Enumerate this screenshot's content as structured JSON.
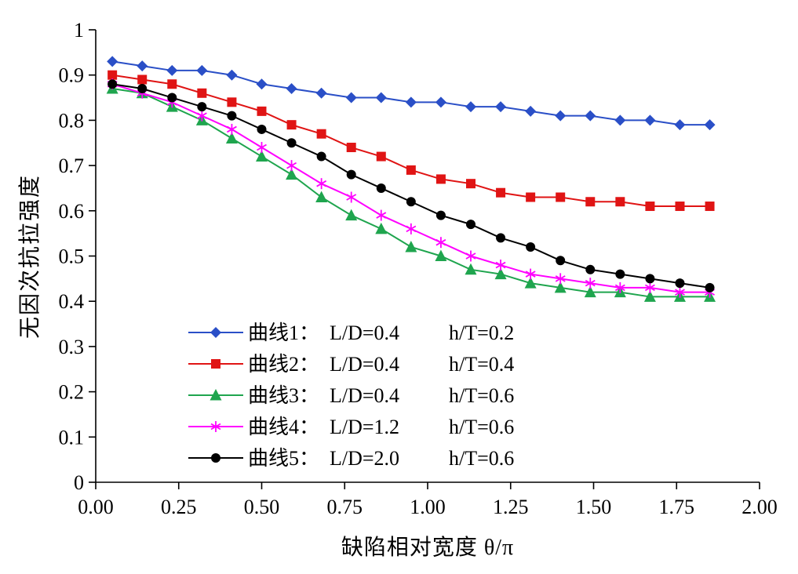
{
  "chart_data": {
    "type": "line",
    "title": "",
    "xlabel": "缺陷相对宽度 θ/π",
    "ylabel": "无因次抗拉强度",
    "xlim": [
      0,
      2
    ],
    "ylim": [
      0,
      1
    ],
    "grid": false,
    "legend_position": "inside-lower-left",
    "xticks": {
      "values": [
        0,
        0.25,
        0.5,
        0.75,
        1.0,
        1.25,
        1.5,
        1.75,
        2.0
      ],
      "labels": [
        "0.00",
        "0.25",
        "0.50",
        "0.75",
        "1.00",
        "1.25",
        "1.50",
        "1.75",
        "2.00"
      ]
    },
    "yticks": {
      "values": [
        0,
        0.1,
        0.2,
        0.3,
        0.4,
        0.5,
        0.6,
        0.7,
        0.8,
        0.9,
        1.0
      ],
      "labels": [
        "0",
        "0.1",
        "0.2",
        "0.3",
        "0.4",
        "0.5",
        "0.6",
        "0.7",
        "0.8",
        "0.9",
        "1"
      ]
    },
    "x": [
      0.05,
      0.14,
      0.23,
      0.32,
      0.41,
      0.5,
      0.59,
      0.68,
      0.77,
      0.86,
      0.95,
      1.04,
      1.13,
      1.22,
      1.31,
      1.4,
      1.49,
      1.58,
      1.67,
      1.76,
      1.85
    ],
    "series": [
      {
        "name": "曲线1",
        "legend": {
          "name": "曲线1：",
          "ld": "L/D=0.4",
          "ht": "h/T=0.2"
        },
        "color": "#2a4fc7",
        "marker": "diamond",
        "values": [
          0.93,
          0.92,
          0.91,
          0.91,
          0.9,
          0.88,
          0.87,
          0.86,
          0.85,
          0.85,
          0.84,
          0.84,
          0.83,
          0.83,
          0.82,
          0.81,
          0.81,
          0.8,
          0.8,
          0.79,
          0.79
        ]
      },
      {
        "name": "曲线2",
        "legend": {
          "name": "曲线2：",
          "ld": "L/D=0.4",
          "ht": "h/T=0.4"
        },
        "color": "#e01414",
        "marker": "square",
        "values": [
          0.9,
          0.89,
          0.88,
          0.86,
          0.84,
          0.82,
          0.79,
          0.77,
          0.74,
          0.72,
          0.69,
          0.67,
          0.66,
          0.64,
          0.63,
          0.63,
          0.62,
          0.62,
          0.61,
          0.61,
          0.61
        ]
      },
      {
        "name": "曲线3",
        "legend": {
          "name": "曲线3：",
          "ld": "L/D=0.4",
          "ht": "h/T=0.6"
        },
        "color": "#1fa54e",
        "marker": "triangle",
        "values": [
          0.87,
          0.86,
          0.83,
          0.8,
          0.76,
          0.72,
          0.68,
          0.63,
          0.59,
          0.56,
          0.52,
          0.5,
          0.47,
          0.46,
          0.44,
          0.43,
          0.42,
          0.42,
          0.41,
          0.41,
          0.41
        ]
      },
      {
        "name": "曲线4",
        "legend": {
          "name": "曲线4：",
          "ld": "L/D=1.2",
          "ht": "h/T=0.6"
        },
        "color": "#ff00ff",
        "marker": "asterisk",
        "values": [
          0.88,
          0.86,
          0.84,
          0.81,
          0.78,
          0.74,
          0.7,
          0.66,
          0.63,
          0.59,
          0.56,
          0.53,
          0.5,
          0.48,
          0.46,
          0.45,
          0.44,
          0.43,
          0.43,
          0.42,
          0.42
        ]
      },
      {
        "name": "曲线5",
        "legend": {
          "name": "曲线5：",
          "ld": "L/D=2.0",
          "ht": "h/T=0.6"
        },
        "color": "#000000",
        "marker": "circle",
        "values": [
          0.88,
          0.87,
          0.85,
          0.83,
          0.81,
          0.78,
          0.75,
          0.72,
          0.68,
          0.65,
          0.62,
          0.59,
          0.57,
          0.54,
          0.52,
          0.49,
          0.47,
          0.46,
          0.45,
          0.44,
          0.43
        ]
      }
    ]
  }
}
